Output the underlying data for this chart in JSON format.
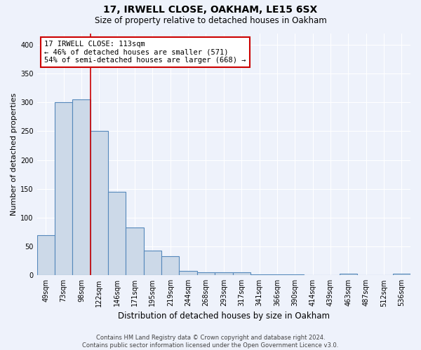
{
  "title": "17, IRWELL CLOSE, OAKHAM, LE15 6SX",
  "subtitle": "Size of property relative to detached houses in Oakham",
  "xlabel": "Distribution of detached houses by size in Oakham",
  "ylabel": "Number of detached properties",
  "footer_line1": "Contains HM Land Registry data © Crown copyright and database right 2024.",
  "footer_line2": "Contains public sector information licensed under the Open Government Licence v3.0.",
  "categories": [
    "49sqm",
    "73sqm",
    "98sqm",
    "122sqm",
    "146sqm",
    "171sqm",
    "195sqm",
    "219sqm",
    "244sqm",
    "268sqm",
    "293sqm",
    "317sqm",
    "341sqm",
    "366sqm",
    "390sqm",
    "414sqm",
    "439sqm",
    "463sqm",
    "487sqm",
    "512sqm",
    "536sqm"
  ],
  "values": [
    70,
    300,
    305,
    250,
    145,
    83,
    43,
    33,
    8,
    5,
    5,
    5,
    2,
    1,
    1,
    0,
    0,
    3,
    0,
    0,
    3
  ],
  "bar_color": "#ccd9e8",
  "bar_edge_color": "#5588bb",
  "annotation_line1": "17 IRWELL CLOSE: 113sqm",
  "annotation_line2": "← 46% of detached houses are smaller (571)",
  "annotation_line3": "54% of semi-detached houses are larger (668) →",
  "red_line_x": 2.5,
  "ylim": [
    0,
    420
  ],
  "yticks": [
    0,
    50,
    100,
    150,
    200,
    250,
    300,
    350,
    400
  ],
  "background_color": "#eef2fb",
  "grid_color": "#ffffff",
  "annotation_box_facecolor": "#ffffff",
  "annotation_box_edgecolor": "#cc0000",
  "red_line_color": "#cc0000",
  "title_fontsize": 10,
  "subtitle_fontsize": 8.5,
  "ylabel_fontsize": 8,
  "xlabel_fontsize": 8.5,
  "tick_fontsize": 7,
  "annotation_fontsize": 7.5,
  "footer_fontsize": 6
}
